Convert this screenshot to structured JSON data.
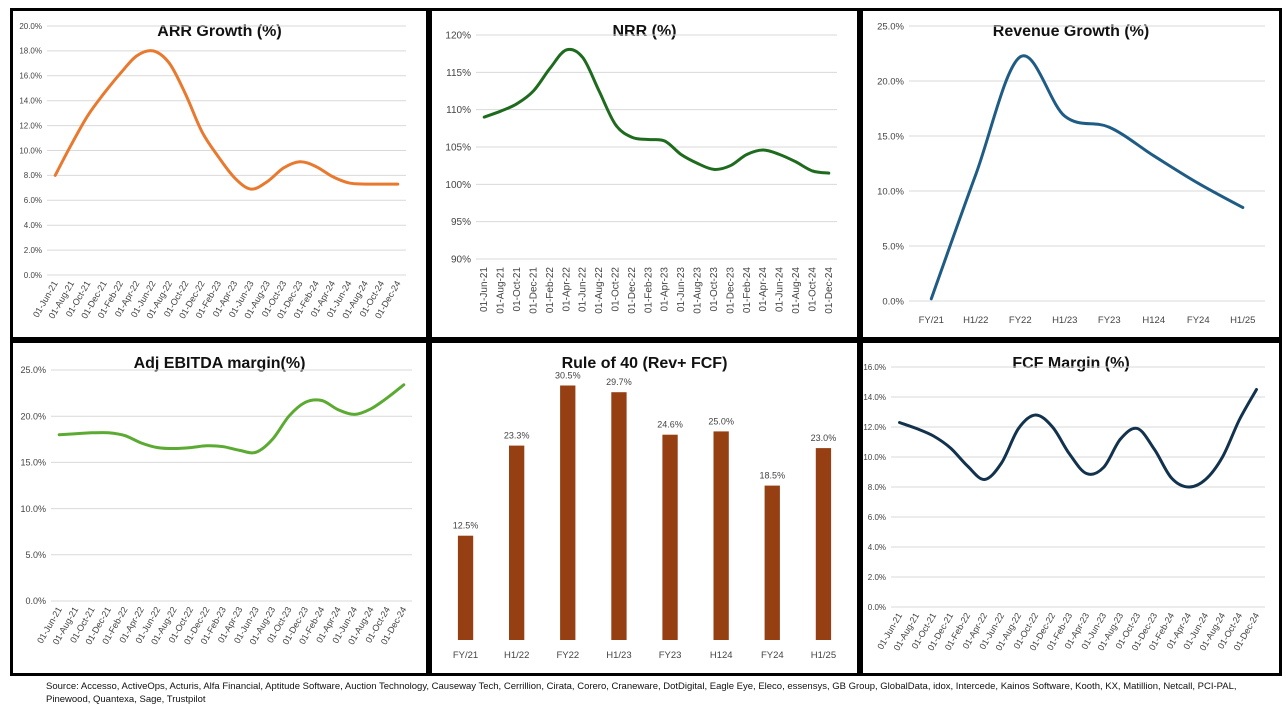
{
  "source_text": "Source: Accesso, ActiveOps, Acturis, Alfa Financial, Aptitude Software, Auction Technology, Causeway Tech, Cerrillion, Cirata, Corero, Craneware, DotDigital, Eagle Eye, Eleco, essensys, GB Group, GlobalData, idox, Intercede, Kainos Software, Kooth, KX, Matillion, Netcall, PCI-PAL, Pinewood, Quantexa, Sage, Trustpilot",
  "chart_data": [
    {
      "id": "arr",
      "type": "line",
      "title": "ARR Growth (%)",
      "color": "#E8792F",
      "tick_format": "pct1",
      "ylim": [
        0,
        20
      ],
      "yticks": [
        0,
        2,
        4,
        6,
        8,
        10,
        12,
        14,
        16,
        18,
        20
      ],
      "categories": [
        "01-Jun-21",
        "01-Aug-21",
        "01-Oct-21",
        "01-Dec-21",
        "01-Feb-22",
        "01-Apr-22",
        "01-Jun-22",
        "01-Aug-22",
        "01-Oct-22",
        "01-Dec-22",
        "01-Feb-23",
        "01-Apr-23",
        "01-Jun-23",
        "01-Aug-23",
        "01-Oct-23",
        "01-Dec-23",
        "01-Feb-24",
        "01-Apr-24",
        "01-Jun-24",
        "01-Aug-24",
        "01-Oct-24",
        "01-Dec-24"
      ],
      "values": [
        8.0,
        10.5,
        12.8,
        14.6,
        16.2,
        17.6,
        18.0,
        17.0,
        14.5,
        11.5,
        9.5,
        7.8,
        6.9,
        7.5,
        8.6,
        9.1,
        8.7,
        7.9,
        7.4,
        7.3,
        7.3,
        7.3
      ],
      "grid": true
    },
    {
      "id": "nrr",
      "type": "line",
      "title": "NRR (%)",
      "color": "#1E6B1E",
      "tick_format": "pct0",
      "ylim": [
        90,
        120
      ],
      "yticks": [
        90,
        95,
        100,
        105,
        110,
        115,
        120
      ],
      "categories": [
        "01-Jun-21",
        "01-Aug-21",
        "01-Oct-21",
        "01-Dec-21",
        "01-Feb-22",
        "01-Apr-22",
        "01-Jun-22",
        "01-Aug-22",
        "01-Oct-22",
        "01-Dec-22",
        "01-Feb-23",
        "01-Apr-23",
        "01-Jun-23",
        "01-Aug-23",
        "01-Oct-23",
        "01-Dec-23",
        "01-Feb-24",
        "01-Apr-24",
        "01-Jun-24",
        "01-Aug-24",
        "01-Oct-24",
        "01-Dec-24"
      ],
      "values": [
        109.0,
        109.8,
        110.8,
        112.5,
        115.5,
        118.0,
        117.0,
        112.5,
        108.0,
        106.3,
        106.0,
        105.8,
        104.0,
        102.8,
        102.0,
        102.5,
        104.0,
        104.6,
        104.0,
        103.0,
        101.8,
        101.5
      ],
      "grid": true
    },
    {
      "id": "rev",
      "type": "line",
      "title": "Revenue Growth (%)",
      "color": "#1F5C85",
      "tick_format": "pct1",
      "ylim": [
        0,
        25
      ],
      "yticks": [
        0,
        5,
        10,
        15,
        20,
        25
      ],
      "categories": [
        "FY/21",
        "H1/22",
        "FY22",
        "H1/23",
        "FY23",
        "H124",
        "FY24",
        "H1/25"
      ],
      "values": [
        0.2,
        11.5,
        22.2,
        16.8,
        15.8,
        13.2,
        10.7,
        8.5
      ],
      "grid": true
    },
    {
      "id": "ebitda",
      "type": "line",
      "title": "Adj EBITDA margin(%)",
      "color": "#5BAA32",
      "tick_format": "pct1",
      "ylim": [
        0,
        25
      ],
      "yticks": [
        0,
        5,
        10,
        15,
        20,
        25
      ],
      "categories": [
        "01-Jun-21",
        "01-Aug-21",
        "01-Oct-21",
        "01-Dec-21",
        "01-Feb-22",
        "01-Apr-22",
        "01-Jun-22",
        "01-Aug-22",
        "01-Oct-22",
        "01-Dec-22",
        "01-Feb-23",
        "01-Apr-23",
        "01-Jun-23",
        "01-Aug-23",
        "01-Oct-23",
        "01-Dec-23",
        "01-Feb-24",
        "01-Apr-24",
        "01-Jun-24",
        "01-Aug-24",
        "01-Oct-24",
        "01-Dec-24"
      ],
      "values": [
        18.0,
        18.1,
        18.2,
        18.2,
        17.9,
        17.1,
        16.6,
        16.5,
        16.6,
        16.8,
        16.7,
        16.3,
        16.1,
        17.5,
        20.0,
        21.5,
        21.7,
        20.7,
        20.2,
        20.8,
        22.0,
        23.4
      ],
      "grid": true
    },
    {
      "id": "rule40",
      "type": "bar",
      "title": "Rule of 40  (Rev+ FCF)",
      "color": "#963F13",
      "categories": [
        "FY/21",
        "H1/22",
        "FY22",
        "H1/23",
        "FY23",
        "H124",
        "FY24",
        "H1/25"
      ],
      "values": [
        12.5,
        23.3,
        30.5,
        29.7,
        24.6,
        25.0,
        18.5,
        23.0
      ],
      "data_labels": [
        "12.5%",
        "23.3%",
        "30.5%",
        "29.7%",
        "24.6%",
        "25.0%",
        "18.5%",
        "23.0%"
      ],
      "ylim": [
        0,
        32
      ],
      "grid": false
    },
    {
      "id": "fcf",
      "type": "line",
      "title": "FCF Margin  (%)",
      "color": "#12324D",
      "tick_format": "pct1",
      "ylim": [
        0,
        16
      ],
      "yticks": [
        0,
        2,
        4,
        6,
        8,
        10,
        12,
        14,
        16
      ],
      "categories": [
        "01-Jun-21",
        "01-Aug-21",
        "01-Oct-21",
        "01-Dec-21",
        "01-Feb-22",
        "01-Apr-22",
        "01-Jun-22",
        "01-Aug-22",
        "01-Oct-22",
        "01-Dec-22",
        "01-Feb-23",
        "01-Apr-23",
        "01-Jun-23",
        "01-Aug-23",
        "01-Oct-23",
        "01-Dec-23",
        "01-Feb-24",
        "01-Apr-24",
        "01-Jun-24",
        "01-Aug-24",
        "01-Oct-24",
        "01-Dec-24"
      ],
      "values": [
        12.3,
        11.9,
        11.4,
        10.6,
        9.4,
        8.5,
        9.6,
        11.9,
        12.8,
        12.0,
        10.2,
        8.9,
        9.3,
        11.2,
        11.9,
        10.5,
        8.6,
        8.0,
        8.5,
        10.0,
        12.5,
        14.5
      ],
      "grid": true
    }
  ]
}
